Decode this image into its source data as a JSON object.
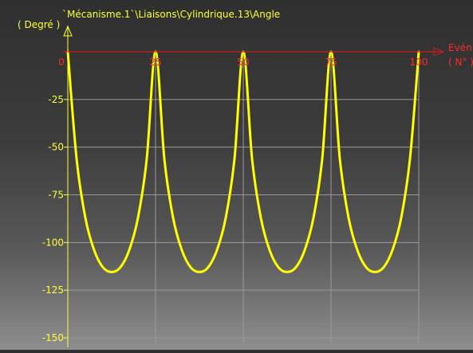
{
  "chart_data": {
    "type": "line",
    "title": "`Mécanisme.1`\\Liaisons\\Cylindrique.13\\Angle",
    "xlabel": "Evén",
    "xunit": "( N° )",
    "ylabel": "( Degré )",
    "xlim": [
      0,
      100
    ],
    "ylim": [
      -150,
      0
    ],
    "x_ticks": [
      0,
      25,
      50,
      75,
      100
    ],
    "y_ticks": [
      -25,
      -50,
      -75,
      -100,
      -125,
      -150
    ],
    "grid": true,
    "colors": {
      "series": "#ffff00",
      "x_axis": "#cc1b1b",
      "y_axis": "#ffff33",
      "grid": "#9a9a9a",
      "x_tick_text": "#ff2a2a",
      "y_tick_text": "#ffff33"
    },
    "series": [
      {
        "x": [
          0,
          2.5,
          5,
          7.5,
          10,
          12.5,
          15,
          17.5,
          20,
          22.5,
          25,
          27.5,
          30,
          32.5,
          35,
          37.5,
          40,
          42.5,
          45,
          47.5,
          50,
          52.5,
          55,
          57.5,
          60,
          62.5,
          65,
          67.5,
          70,
          72.5,
          75,
          77.5,
          80,
          82.5,
          85,
          87.5,
          90,
          92.5,
          95,
          97.5,
          100
        ],
        "values": [
          0,
          -56,
          -87,
          -104,
          -113,
          -115.5,
          -113,
          -104,
          -87,
          -56,
          0,
          -56,
          -87,
          -104,
          -113,
          -115.5,
          -113,
          -104,
          -87,
          -56,
          0,
          -56,
          -87,
          -104,
          -113,
          -115.5,
          -113,
          -104,
          -87,
          -56,
          0,
          -56,
          -87,
          -104,
          -113,
          -115.5,
          -113,
          -104,
          -87,
          -56,
          0
        ]
      }
    ]
  }
}
